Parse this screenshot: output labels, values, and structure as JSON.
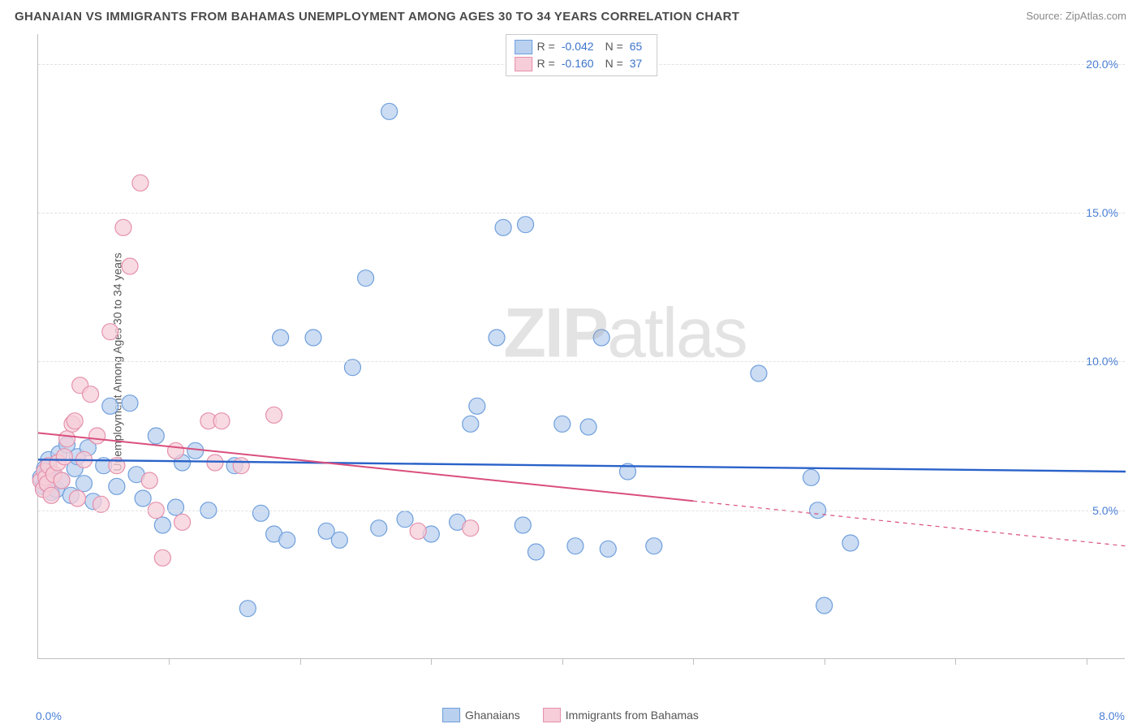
{
  "header": {
    "title": "GHANAIAN VS IMMIGRANTS FROM BAHAMAS UNEMPLOYMENT AMONG AGES 30 TO 34 YEARS CORRELATION CHART",
    "source": "Source: ZipAtlas.com"
  },
  "chart": {
    "type": "scatter",
    "watermark": {
      "prefix": "ZIP",
      "suffix": "atlas"
    },
    "y_axis": {
      "title": "Unemployment Among Ages 30 to 34 years",
      "min": 0,
      "max": 21,
      "ticks": [
        5,
        10,
        15,
        20
      ],
      "tick_labels": [
        "5.0%",
        "10.0%",
        "15.0%",
        "20.0%"
      ],
      "tick_color": "#4a7fd6",
      "grid_color": "#e2e2e2"
    },
    "x_axis": {
      "min": 0,
      "max": 8.3,
      "tick_positions": [
        1,
        2,
        3,
        4,
        5,
        6,
        7,
        8
      ],
      "end_labels": {
        "left": "0.0%",
        "right": "8.0%"
      },
      "label_color": "#4a7fd6"
    },
    "series": [
      {
        "name": "Ghanaians",
        "color_fill": "#b9d0ef",
        "color_stroke": "#6f9fdc",
        "marker_r": 10,
        "marker_opacity": 0.75,
        "R": "-0.042",
        "N": "65",
        "trend": {
          "y_at_xmin": 6.7,
          "y_at_xmax": 6.3,
          "x_solid_end": 8.3,
          "color": "#2a62c9",
          "width": 2.4
        },
        "points": [
          [
            0.02,
            6.1
          ],
          [
            0.04,
            5.8
          ],
          [
            0.05,
            6.4
          ],
          [
            0.06,
            5.9
          ],
          [
            0.07,
            6.3
          ],
          [
            0.08,
            6.7
          ],
          [
            0.1,
            5.6
          ],
          [
            0.12,
            6.2
          ],
          [
            0.14,
            5.7
          ],
          [
            0.16,
            6.9
          ],
          [
            0.18,
            6.0
          ],
          [
            0.22,
            7.2
          ],
          [
            0.25,
            5.5
          ],
          [
            0.28,
            6.4
          ],
          [
            0.3,
            6.8
          ],
          [
            0.35,
            5.9
          ],
          [
            0.38,
            7.1
          ],
          [
            0.42,
            5.3
          ],
          [
            0.5,
            6.5
          ],
          [
            0.55,
            8.5
          ],
          [
            0.6,
            5.8
          ],
          [
            0.7,
            8.6
          ],
          [
            0.75,
            6.2
          ],
          [
            0.8,
            5.4
          ],
          [
            0.9,
            7.5
          ],
          [
            0.95,
            4.5
          ],
          [
            1.05,
            5.1
          ],
          [
            1.1,
            6.6
          ],
          [
            1.2,
            7.0
          ],
          [
            1.3,
            5.0
          ],
          [
            1.5,
            6.5
          ],
          [
            1.6,
            1.7
          ],
          [
            1.7,
            4.9
          ],
          [
            1.8,
            4.2
          ],
          [
            1.85,
            10.8
          ],
          [
            1.9,
            4.0
          ],
          [
            2.1,
            10.8
          ],
          [
            2.2,
            4.3
          ],
          [
            2.3,
            4.0
          ],
          [
            2.4,
            9.8
          ],
          [
            2.5,
            12.8
          ],
          [
            2.6,
            4.4
          ],
          [
            2.68,
            18.4
          ],
          [
            2.8,
            4.7
          ],
          [
            3.0,
            4.2
          ],
          [
            3.2,
            4.6
          ],
          [
            3.3,
            7.9
          ],
          [
            3.35,
            8.5
          ],
          [
            3.5,
            10.8
          ],
          [
            3.55,
            14.5
          ],
          [
            3.7,
            4.5
          ],
          [
            3.72,
            14.6
          ],
          [
            3.8,
            3.6
          ],
          [
            4.0,
            7.9
          ],
          [
            4.1,
            3.8
          ],
          [
            4.2,
            7.8
          ],
          [
            4.3,
            10.8
          ],
          [
            4.35,
            3.7
          ],
          [
            4.5,
            6.3
          ],
          [
            4.7,
            3.8
          ],
          [
            5.5,
            9.6
          ],
          [
            5.9,
            6.1
          ],
          [
            5.95,
            5.0
          ],
          [
            6.0,
            1.8
          ],
          [
            6.2,
            3.9
          ]
        ]
      },
      {
        "name": "Immigrants from Bahamas",
        "color_fill": "#f6cdd8",
        "color_stroke": "#e590ab",
        "marker_r": 10,
        "marker_opacity": 0.75,
        "R": "-0.160",
        "N": "37",
        "trend": {
          "y_at_xmin": 7.6,
          "y_at_xmax": 3.8,
          "x_solid_end": 5.0,
          "color": "#d94f7d",
          "width": 2.0
        },
        "points": [
          [
            0.02,
            6.0
          ],
          [
            0.04,
            5.7
          ],
          [
            0.05,
            6.3
          ],
          [
            0.06,
            6.1
          ],
          [
            0.07,
            5.9
          ],
          [
            0.08,
            6.5
          ],
          [
            0.1,
            5.5
          ],
          [
            0.12,
            6.2
          ],
          [
            0.15,
            6.6
          ],
          [
            0.18,
            6.0
          ],
          [
            0.2,
            6.8
          ],
          [
            0.22,
            7.4
          ],
          [
            0.26,
            7.9
          ],
          [
            0.28,
            8.0
          ],
          [
            0.3,
            5.4
          ],
          [
            0.32,
            9.2
          ],
          [
            0.35,
            6.7
          ],
          [
            0.4,
            8.9
          ],
          [
            0.45,
            7.5
          ],
          [
            0.48,
            5.2
          ],
          [
            0.55,
            11.0
          ],
          [
            0.6,
            6.5
          ],
          [
            0.65,
            14.5
          ],
          [
            0.7,
            13.2
          ],
          [
            0.78,
            16.0
          ],
          [
            0.85,
            6.0
          ],
          [
            0.9,
            5.0
          ],
          [
            0.95,
            3.4
          ],
          [
            1.05,
            7.0
          ],
          [
            1.1,
            4.6
          ],
          [
            1.3,
            8.0
          ],
          [
            1.35,
            6.6
          ],
          [
            1.4,
            8.0
          ],
          [
            1.55,
            6.5
          ],
          [
            1.8,
            8.2
          ],
          [
            2.9,
            4.3
          ],
          [
            3.3,
            4.4
          ]
        ]
      }
    ]
  },
  "legend_bottom": [
    {
      "label": "Ghanaians",
      "fill": "#b9d0ef",
      "stroke": "#6f9fdc"
    },
    {
      "label": "Immigrants from Bahamas",
      "fill": "#f6cdd8",
      "stroke": "#e590ab"
    }
  ]
}
